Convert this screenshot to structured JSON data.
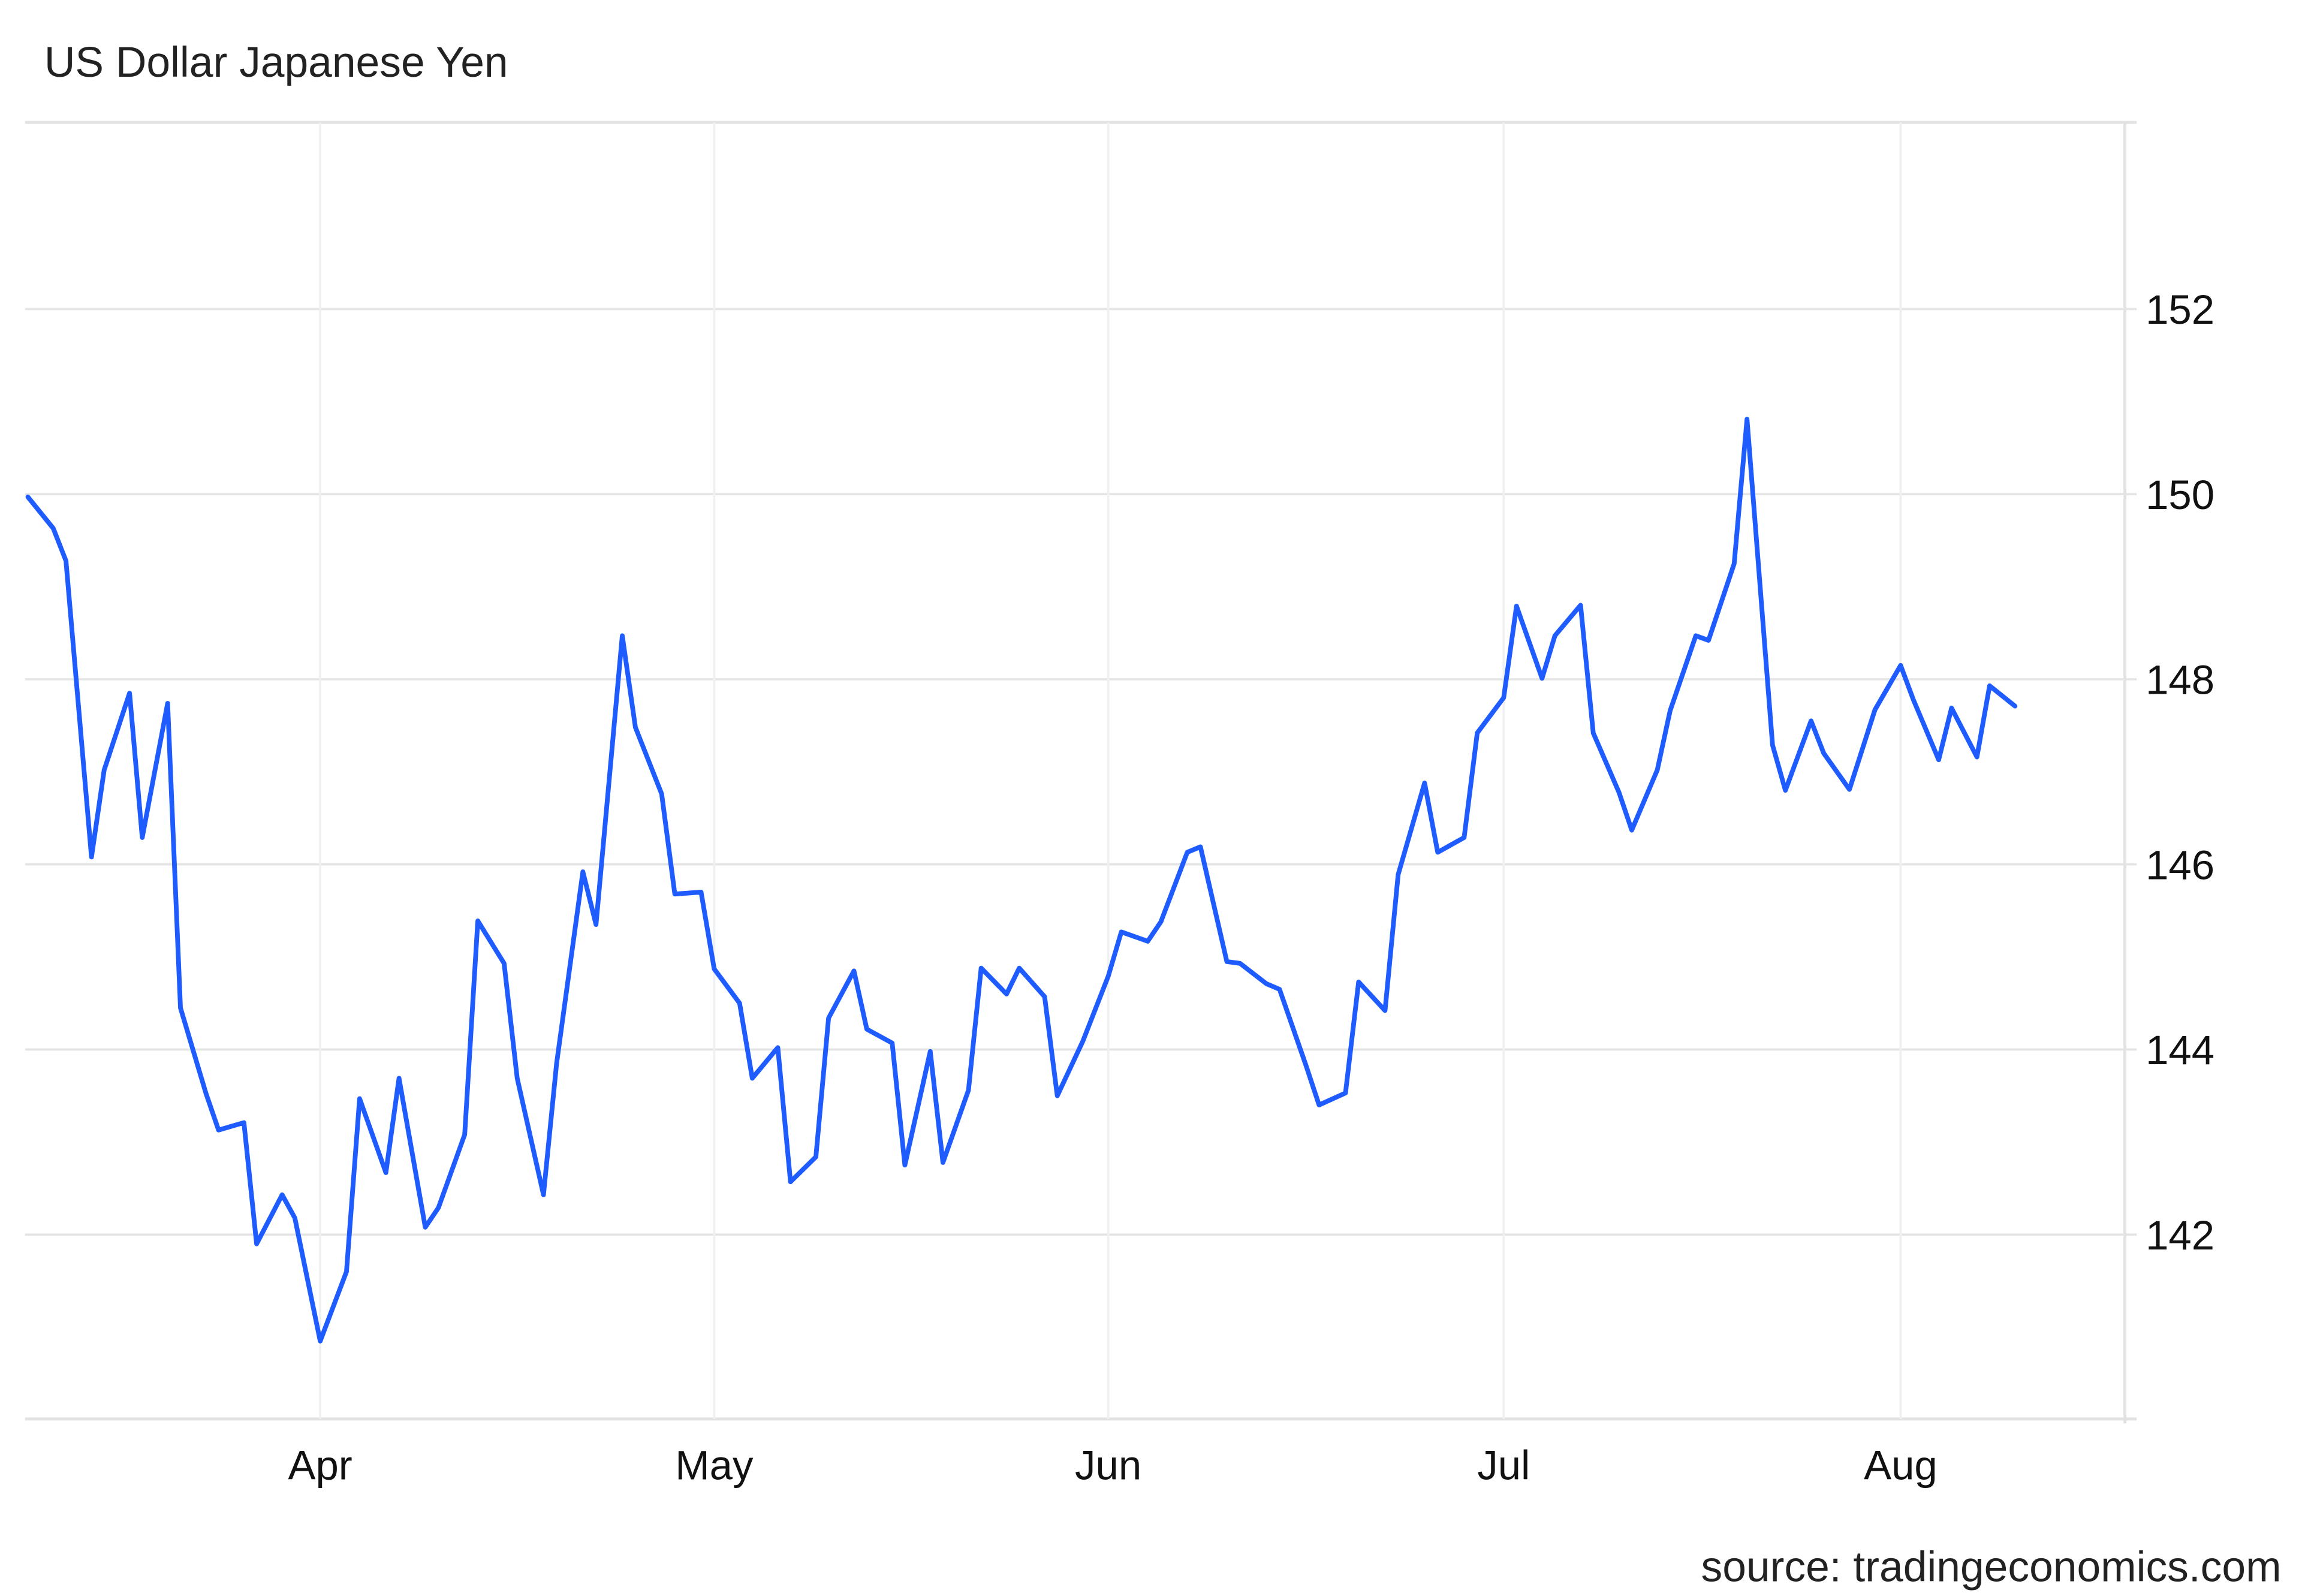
{
  "chart_data": {
    "type": "line",
    "title": "US Dollar Japanese Yen",
    "source": "source: tradingeconomics.com",
    "xlabel": "",
    "ylabel": "",
    "x_ticks": [
      "Apr",
      "May",
      "Jun",
      "Jul",
      "Aug"
    ],
    "y_ticks": [
      142,
      144,
      146,
      148,
      150,
      152
    ],
    "ylim": [
      140,
      154
    ],
    "y_axis_side": "right",
    "grid": true,
    "line_color": "#1f5cff",
    "series": [
      {
        "x": [
          "Mar 9",
          "Mar 11",
          "Mar 12",
          "Mar 14",
          "Mar 15",
          "Mar 17",
          "Mar 18",
          "Mar 20",
          "Mar 21",
          "Mar 23",
          "Mar 24",
          "Mar 26",
          "Mar 27",
          "Mar 29",
          "Mar 30",
          "Apr 1",
          "Apr 3",
          "Apr 4",
          "Apr 6",
          "Apr 7",
          "Apr 9",
          "Apr 10",
          "Apr 12",
          "Apr 13",
          "Apr 15",
          "Apr 16",
          "Apr 18",
          "Apr 19",
          "Apr 21",
          "Apr 22",
          "Apr 24",
          "Apr 25",
          "Apr 27",
          "Apr 28",
          "Apr 30",
          "May 1",
          "May 3",
          "May 4",
          "May 6",
          "May 7",
          "May 9",
          "May 10",
          "May 12",
          "May 13",
          "May 15",
          "May 16",
          "May 18",
          "May 19",
          "May 21",
          "May 22",
          "May 24",
          "May 25",
          "May 27",
          "May 28",
          "May 30",
          "Jun 1",
          "Jun 2",
          "Jun 4",
          "Jun 5",
          "Jun 7",
          "Jun 8",
          "Jun 10",
          "Jun 11",
          "Jun 13",
          "Jun 14",
          "Jun 16",
          "Jun 17",
          "Jun 19",
          "Jun 20",
          "Jun 22",
          "Jun 23",
          "Jun 25",
          "Jun 26",
          "Jun 28",
          "Jun 29",
          "Jul 1",
          "Jul 2",
          "Jul 4",
          "Jul 5",
          "Jul 7",
          "Jul 8",
          "Jul 10",
          "Jul 11",
          "Jul 13",
          "Jul 14",
          "Jul 16",
          "Jul 17",
          "Jul 19",
          "Jul 20",
          "Jul 22",
          "Jul 23",
          "Jul 25",
          "Jul 26",
          "Jul 28",
          "Jul 30",
          "Aug 1",
          "Aug 2",
          "Aug 4",
          "Aug 5",
          "Aug 7",
          "Aug 8",
          "Aug 10"
        ],
        "values": [
          149.97,
          149.63,
          149.28,
          146.08,
          147.02,
          147.85,
          146.29,
          147.74,
          144.45,
          143.53,
          143.13,
          143.21,
          141.9,
          142.43,
          142.18,
          140.85,
          141.6,
          143.47,
          142.67,
          143.69,
          142.08,
          142.29,
          143.08,
          145.39,
          144.93,
          143.69,
          142.43,
          143.85,
          145.92,
          145.35,
          148.47,
          147.48,
          146.76,
          145.68,
          145.7,
          144.87,
          144.5,
          143.69,
          144.02,
          142.57,
          142.84,
          144.34,
          144.85,
          144.22,
          144.07,
          142.75,
          143.98,
          142.78,
          143.56,
          144.88,
          144.6,
          144.88,
          144.57,
          143.5,
          144.09,
          144.79,
          145.27,
          145.17,
          145.38,
          146.13,
          146.19,
          144.95,
          144.93,
          144.71,
          144.65,
          143.83,
          143.4,
          143.53,
          144.73,
          144.42,
          145.89,
          146.88,
          146.13,
          146.29,
          147.42,
          147.8,
          148.79,
          148.01,
          148.47,
          148.8,
          147.42,
          146.78,
          146.37,
          147.02,
          147.66,
          148.47,
          148.42,
          149.25,
          150.81,
          147.29,
          146.8,
          147.55,
          147.2,
          146.81,
          147.67,
          148.15,
          147.78,
          147.13,
          147.69,
          147.16,
          147.93,
          147.71
        ]
      }
    ]
  }
}
